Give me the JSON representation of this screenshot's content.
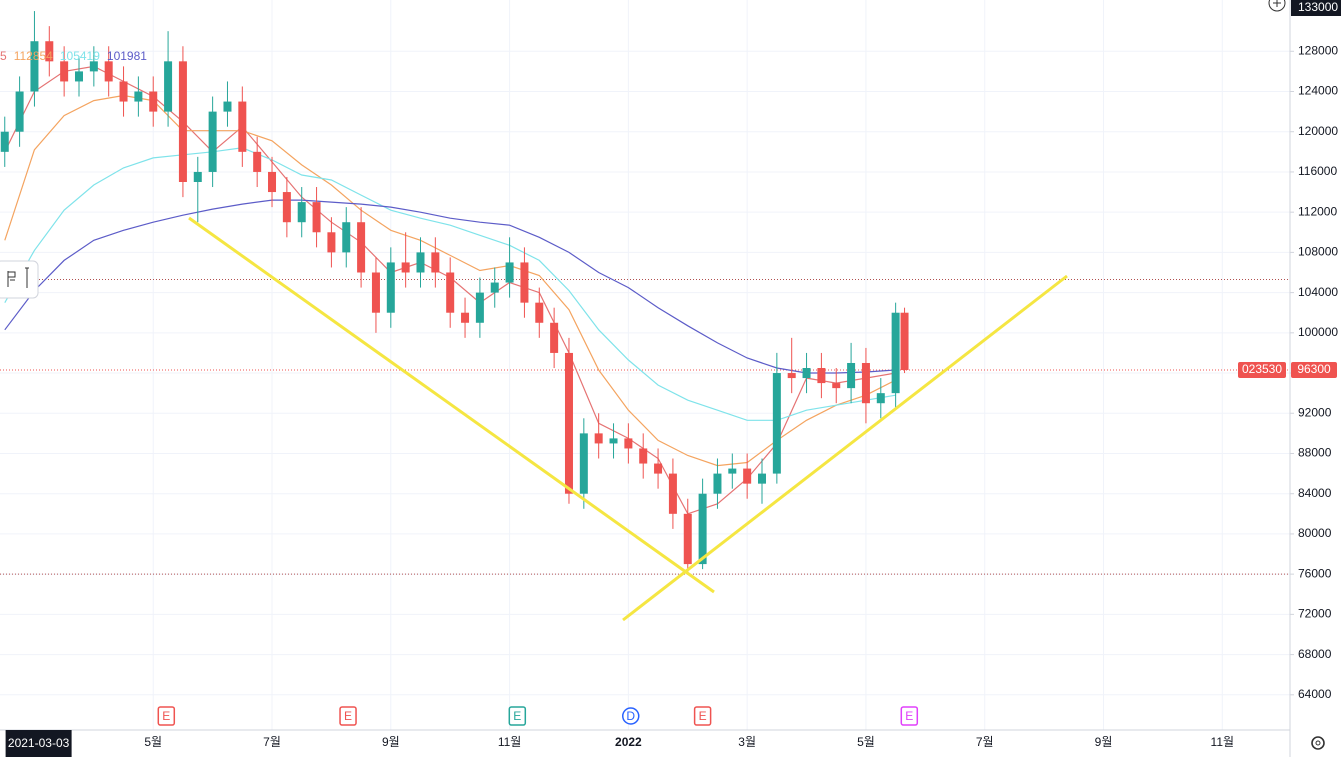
{
  "chart_data": {
    "type": "candlestick",
    "ticker": "023530",
    "last_price": 96300,
    "top_price_label": 133000,
    "xlim": [
      1.42,
      23.14
    ],
    "ylim": [
      60500,
      133100
    ],
    "yticks": [
      64000,
      68000,
      72000,
      76000,
      80000,
      84000,
      88000,
      92000,
      96000,
      100000,
      104000,
      108000,
      112000,
      116000,
      120000,
      124000,
      128000
    ],
    "xticks": [
      {
        "value": 2.07,
        "label": "2021-03-03"
      },
      {
        "value": 4,
        "label": "5월"
      },
      {
        "value": 6,
        "label": "7월"
      },
      {
        "value": 8,
        "label": "9월"
      },
      {
        "value": 10,
        "label": "11월"
      },
      {
        "value": 12,
        "label": "2022"
      },
      {
        "value": 14,
        "label": "3월"
      },
      {
        "value": 16,
        "label": "5월"
      },
      {
        "value": 18,
        "label": "7월"
      },
      {
        "value": 20,
        "label": "9월"
      },
      {
        "value": 22,
        "label": "11월"
      }
    ],
    "grid": true,
    "up_color": "#26a69a",
    "down_color": "#ef5350",
    "x": [
      1.5,
      1.75,
      2.0,
      2.25,
      2.5,
      2.75,
      3.0,
      3.25,
      3.5,
      3.75,
      4.0,
      4.25,
      4.5,
      4.75,
      5.0,
      5.25,
      5.5,
      5.75,
      6.0,
      6.25,
      6.5,
      6.75,
      7.0,
      7.25,
      7.5,
      7.75,
      8.0,
      8.25,
      8.5,
      8.75,
      9.0,
      9.25,
      9.5,
      9.75,
      10.0,
      10.25,
      10.5,
      10.75,
      11.0,
      11.25,
      11.5,
      11.75,
      12.0,
      12.25,
      12.5,
      12.75,
      13.0,
      13.25,
      13.5,
      13.75,
      14.0,
      14.25,
      14.5,
      14.75,
      15.0,
      15.25,
      15.5,
      15.75,
      16.0,
      16.25,
      16.5,
      16.65
    ],
    "open": [
      118000,
      120000,
      124000,
      129000,
      127000,
      125000,
      126000,
      127000,
      125000,
      123000,
      124000,
      122000,
      127000,
      115000,
      116000,
      122000,
      123000,
      118000,
      116000,
      114000,
      111000,
      113000,
      110000,
      108000,
      111000,
      106000,
      102000,
      107000,
      106000,
      108000,
      106000,
      102000,
      101000,
      104000,
      105000,
      107000,
      103000,
      101000,
      98000,
      84000,
      90000,
      89000,
      89500,
      88500,
      87000,
      86000,
      82000,
      77000,
      84000,
      86000,
      86500,
      85000,
      86000,
      96000,
      95500,
      96500,
      95000,
      94500,
      97000,
      93000,
      94000,
      102000
    ],
    "high": [
      121500,
      125500,
      132000,
      130500,
      128500,
      127500,
      128500,
      128500,
      126500,
      125500,
      125500,
      130000,
      128500,
      117500,
      123500,
      125000,
      124500,
      119500,
      117500,
      115500,
      114500,
      114500,
      111500,
      112500,
      112500,
      107500,
      108500,
      110000,
      109500,
      109500,
      107500,
      103500,
      105500,
      106500,
      109500,
      108500,
      104500,
      102500,
      99500,
      91500,
      92000,
      91000,
      91000,
      90000,
      88500,
      87500,
      83500,
      85500,
      87500,
      88000,
      88000,
      87500,
      98000,
      99500,
      98000,
      98000,
      96500,
      99000,
      98500,
      95500,
      103000,
      102500
    ],
    "low": [
      116500,
      118500,
      122500,
      125500,
      123500,
      123500,
      124500,
      123500,
      121500,
      121500,
      120500,
      120500,
      113500,
      111000,
      114500,
      120500,
      116500,
      114500,
      112500,
      109500,
      109500,
      108500,
      106500,
      106500,
      104500,
      100000,
      100500,
      104500,
      104500,
      104500,
      100500,
      99500,
      99500,
      102500,
      103500,
      101500,
      99500,
      96500,
      83000,
      82500,
      87500,
      87500,
      87000,
      85500,
      84500,
      80500,
      76000,
      76500,
      82500,
      84500,
      83500,
      83000,
      85000,
      94000,
      94000,
      93500,
      93000,
      93000,
      91000,
      91500,
      92500,
      96000
    ],
    "close": [
      120000,
      124000,
      129000,
      127000,
      125000,
      126000,
      127000,
      125000,
      123000,
      124000,
      122000,
      127000,
      115000,
      116000,
      122000,
      123000,
      118000,
      116000,
      114000,
      111000,
      113000,
      110000,
      108000,
      111000,
      106000,
      102000,
      107000,
      106000,
      108000,
      106000,
      102000,
      101000,
      104000,
      105000,
      107000,
      103000,
      101000,
      98000,
      84000,
      90000,
      89000,
      89500,
      88500,
      87000,
      86000,
      82000,
      77000,
      84000,
      86000,
      86500,
      85000,
      86000,
      96000,
      95500,
      96500,
      95000,
      94500,
      97000,
      93000,
      94000,
      102000,
      96300
    ],
    "ma_x": [
      1.5,
      2.0,
      2.5,
      3.0,
      3.5,
      4.0,
      4.5,
      5.0,
      5.5,
      6.0,
      6.5,
      7.0,
      7.5,
      8.0,
      8.5,
      9.0,
      9.5,
      10.0,
      10.5,
      11.0,
      11.5,
      12.0,
      12.5,
      13.0,
      13.5,
      14.0,
      14.5,
      15.0,
      15.5,
      16.0,
      16.5
    ],
    "moving_averages": [
      {
        "label": "5",
        "color": "#e57373",
        "values": [
          118000,
          124000,
          126000,
          126500,
          125000,
          123500,
          121000,
          118000,
          120500,
          117000,
          113500,
          111000,
          109000,
          106000,
          107000,
          105500,
          103000,
          105000,
          104000,
          98000,
          91000,
          89500,
          87500,
          82000,
          83000,
          85500,
          89000,
          95500,
          95000,
          95500,
          96000
        ]
      },
      {
        "label": "112854",
        "color": "#f4a460",
        "values": [
          109200,
          118200,
          121600,
          123100,
          123600,
          123100,
          120100,
          120100,
          120100,
          119100,
          116700,
          114700,
          112200,
          110200,
          109200,
          107700,
          106200,
          106700,
          105700,
          102300,
          96300,
          92300,
          89300,
          87800,
          86800,
          87100,
          89300,
          91300,
          92800,
          93800,
          95300
        ]
      },
      {
        "label": "105419",
        "color": "#7fe3ea",
        "values": [
          103000,
          108200,
          112200,
          114700,
          116400,
          117400,
          117700,
          118000,
          118400,
          117200,
          115700,
          115200,
          113700,
          112200,
          111400,
          110700,
          109700,
          108700,
          107200,
          104200,
          100300,
          97300,
          94800,
          93300,
          92300,
          91300,
          91300,
          92300,
          92800,
          93300,
          93800
        ]
      },
      {
        "label": "101981",
        "color": "#5c5cc8",
        "values": [
          100300,
          104200,
          107200,
          109200,
          110200,
          111000,
          111700,
          112300,
          112800,
          113200,
          113200,
          113000,
          112800,
          112500,
          112000,
          111400,
          111000,
          110700,
          109500,
          108000,
          106000,
          104500,
          102500,
          100700,
          99000,
          97500,
          96500,
          96000,
          96000,
          96100,
          96300
        ]
      }
    ],
    "price_lines": [
      105300,
      76000
    ],
    "events": [
      {
        "x": 4.22,
        "label": "E",
        "color": "#ef5350"
      },
      {
        "x": 7.28,
        "label": "E",
        "color": "#ef5350"
      },
      {
        "x": 10.13,
        "label": "E",
        "color": "#26a69a"
      },
      {
        "x": 12.04,
        "label": "D",
        "color": "#2962ff"
      },
      {
        "x": 13.25,
        "label": "E",
        "color": "#ef5350"
      },
      {
        "x": 16.73,
        "label": "E",
        "color": "#e040fb"
      }
    ]
  }
}
